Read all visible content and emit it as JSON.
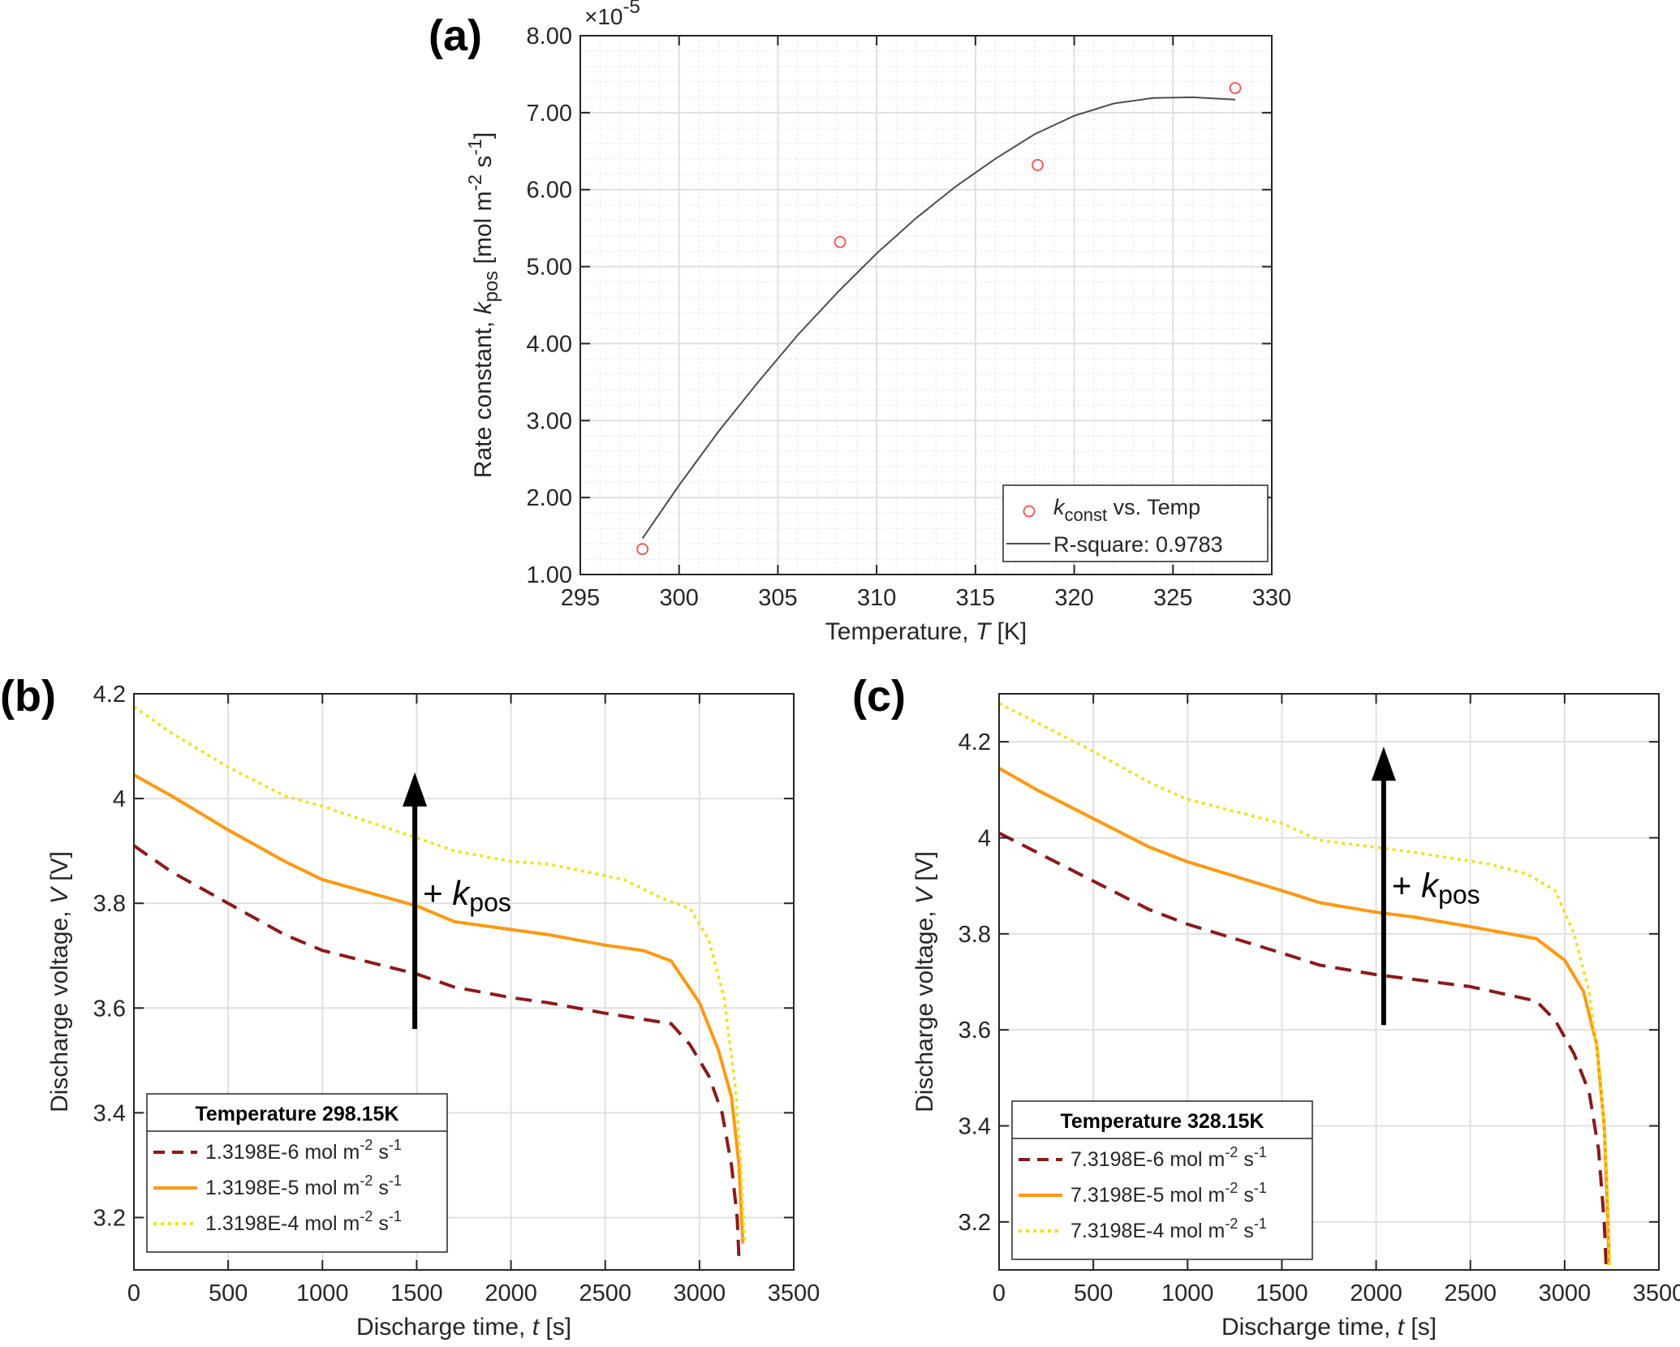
{
  "colors": {
    "axis": "#262626",
    "grid": "#e0e0e0",
    "minor_grid": "#eeeeee",
    "marker": "#ff4d4d",
    "fit": "#4d4d4d",
    "series_low": "#8b1a1a",
    "series_mid": "#ff9912",
    "series_high": "#f0e01e",
    "arrow": "#000000"
  },
  "panels": {
    "a": {
      "label": "(a)"
    },
    "b": {
      "label": "(b)",
      "arrow_label": "+ k",
      "arrow_sub": "pos"
    },
    "c": {
      "label": "(c)",
      "arrow_label": "+ k",
      "arrow_sub": "pos"
    }
  },
  "chart_data": [
    {
      "id": "a",
      "type": "scatter",
      "xlabel": "Temperature, T  [K]",
      "xlabel_parts": {
        "pre": "Temperature, ",
        "var": "T",
        "post": "  [K]"
      },
      "ylabel": "Rate constant, k_pos [mol m^-2 s^-1]",
      "ylabel_parts": {
        "pre": "Rate constant, ",
        "var": "k",
        "sub": "pos",
        "mid": " [mol m",
        "sup1": "-2",
        "mid2": " s",
        "sup2": "-1",
        "post": "]"
      },
      "exponent_label": "×10",
      "exponent_power": "-5",
      "xlim": [
        295,
        330
      ],
      "ylim": [
        1.0,
        8.0
      ],
      "x_ticks": [
        295,
        300,
        305,
        310,
        315,
        320,
        325,
        330
      ],
      "y_ticks": [
        1.0,
        2.0,
        3.0,
        4.0,
        5.0,
        6.0,
        7.0,
        8.0
      ],
      "y_tick_labels": [
        "1.00",
        "2.00",
        "3.00",
        "4.00",
        "5.00",
        "6.00",
        "7.00",
        "8.00"
      ],
      "grid": true,
      "minor_grid": true,
      "legend_position": "bottom-right",
      "series": [
        {
          "name": "k_const vs. Temp",
          "legend_parts": {
            "var": "k",
            "sub": "const",
            "post": " vs. Temp"
          },
          "marker": "circle",
          "color": "#ff4d4d",
          "points": [
            [
              298.15,
              1.33
            ],
            [
              308.15,
              5.32
            ],
            [
              318.15,
              6.32
            ],
            [
              328.15,
              7.32
            ]
          ]
        },
        {
          "name": "R-square: 0.9783",
          "legend_parts": {
            "post": "R-square: 0.9783"
          },
          "line": "solid",
          "color": "#4d4d4d",
          "points": [
            [
              298.15,
              1.47
            ],
            [
              300,
              2.16
            ],
            [
              302,
              2.86
            ],
            [
              304,
              3.5
            ],
            [
              306,
              4.11
            ],
            [
              308,
              4.66
            ],
            [
              310,
              5.17
            ],
            [
              312,
              5.63
            ],
            [
              314,
              6.04
            ],
            [
              316,
              6.4
            ],
            [
              318,
              6.72
            ],
            [
              320,
              6.96
            ],
            [
              322,
              7.12
            ],
            [
              324,
              7.19
            ],
            [
              326,
              7.2
            ],
            [
              328.15,
              7.17
            ]
          ]
        }
      ]
    },
    {
      "id": "b",
      "type": "line",
      "xlabel": "Discharge time, t [s]",
      "xlabel_parts": {
        "pre": "Discharge time, ",
        "var": "t",
        "post": " [s]"
      },
      "ylabel": "Discharge voltage, V [V]",
      "ylabel_parts": {
        "pre": "Discharge voltage, ",
        "var": "V",
        "post": " [V]"
      },
      "xlim": [
        0,
        3500
      ],
      "ylim": [
        3.1,
        4.2
      ],
      "x_ticks": [
        0,
        500,
        1000,
        1500,
        2000,
        2500,
        3000,
        3500
      ],
      "y_ticks": [
        3.2,
        3.4,
        3.6,
        3.8,
        4.0,
        4.2
      ],
      "y_tick_labels": [
        "3.2",
        "3.4",
        "3.6",
        "3.8",
        "4",
        "4.2"
      ],
      "grid": true,
      "legend_position": "bottom-left",
      "legend_title": "Temperature 298.15K",
      "series": [
        {
          "name": "1.3198E-6 mol m^-2 s^-1",
          "legend_parts": {
            "pre": "1.3198E-6 mol m",
            "sup1": "-2",
            "mid": " s",
            "sup2": "-1"
          },
          "style": "dashed",
          "color": "#8b1a1a",
          "points": [
            [
              0,
              3.91
            ],
            [
              200,
              3.86
            ],
            [
              500,
              3.8
            ],
            [
              800,
              3.74
            ],
            [
              1000,
              3.71
            ],
            [
              1500,
              3.665
            ],
            [
              1700,
              3.64
            ],
            [
              2000,
              3.62
            ],
            [
              2200,
              3.61
            ],
            [
              2500,
              3.59
            ],
            [
              2850,
              3.57
            ],
            [
              2950,
              3.53
            ],
            [
              3050,
              3.47
            ],
            [
              3120,
              3.4
            ],
            [
              3170,
              3.3
            ],
            [
              3200,
              3.2
            ],
            [
              3210,
              3.12
            ]
          ]
        },
        {
          "name": "1.3198E-5 mol m^-2 s^-1",
          "legend_parts": {
            "pre": "1.3198E-5 mol m",
            "sup1": "-2",
            "mid": " s",
            "sup2": "-1"
          },
          "style": "solid",
          "color": "#ff9912",
          "points": [
            [
              0,
              4.045
            ],
            [
              200,
              4.005
            ],
            [
              500,
              3.94
            ],
            [
              800,
              3.88
            ],
            [
              1000,
              3.845
            ],
            [
              1500,
              3.795
            ],
            [
              1700,
              3.765
            ],
            [
              2000,
              3.75
            ],
            [
              2200,
              3.74
            ],
            [
              2500,
              3.72
            ],
            [
              2700,
              3.71
            ],
            [
              2850,
              3.69
            ],
            [
              3000,
              3.61
            ],
            [
              3100,
              3.52
            ],
            [
              3170,
              3.43
            ],
            [
              3210,
              3.3
            ],
            [
              3230,
              3.15
            ]
          ]
        },
        {
          "name": "1.3198E-4 mol m^-2 s^-1",
          "legend_parts": {
            "pre": "1.3198E-4 mol m",
            "sup1": "-2",
            "mid": " s",
            "sup2": "-1"
          },
          "style": "dotted",
          "color": "#f0e01e",
          "points": [
            [
              0,
              4.175
            ],
            [
              200,
              4.125
            ],
            [
              500,
              4.06
            ],
            [
              800,
              4.005
            ],
            [
              1000,
              3.985
            ],
            [
              1500,
              3.925
            ],
            [
              1700,
              3.9
            ],
            [
              2000,
              3.88
            ],
            [
              2200,
              3.875
            ],
            [
              2600,
              3.845
            ],
            [
              2800,
              3.81
            ],
            [
              2950,
              3.79
            ],
            [
              3050,
              3.73
            ],
            [
              3130,
              3.62
            ],
            [
              3190,
              3.45
            ],
            [
              3220,
              3.3
            ],
            [
              3240,
              3.15
            ]
          ]
        }
      ]
    },
    {
      "id": "c",
      "type": "line",
      "xlabel": "Discharge time, t [s]",
      "xlabel_parts": {
        "pre": "Discharge time, ",
        "var": "t",
        "post": " [s]"
      },
      "ylabel": "Discharge voltage, V [V]",
      "ylabel_parts": {
        "pre": "Discharge voltage, ",
        "var": "V",
        "post": " [V]"
      },
      "xlim": [
        0,
        3500
      ],
      "ylim": [
        3.1,
        4.3
      ],
      "x_ticks": [
        0,
        500,
        1000,
        1500,
        2000,
        2500,
        3000,
        3500
      ],
      "y_ticks": [
        3.2,
        3.4,
        3.6,
        3.8,
        4.0,
        4.2
      ],
      "y_tick_labels": [
        "3.2",
        "3.4",
        "3.6",
        "3.8",
        "4",
        "4.2"
      ],
      "grid": true,
      "legend_position": "bottom-left",
      "legend_title": "Temperature 328.15K",
      "series": [
        {
          "name": "7.3198E-6 mol m^-2 s^-1",
          "legend_parts": {
            "pre": "7.3198E-6 mol m",
            "sup1": "-2",
            "mid": " s",
            "sup2": "-1"
          },
          "style": "dashed",
          "color": "#8b1a1a",
          "points": [
            [
              0,
              4.01
            ],
            [
              200,
              3.97
            ],
            [
              500,
              3.91
            ],
            [
              800,
              3.85
            ],
            [
              1000,
              3.82
            ],
            [
              1500,
              3.76
            ],
            [
              1700,
              3.735
            ],
            [
              2000,
              3.715
            ],
            [
              2200,
              3.705
            ],
            [
              2500,
              3.69
            ],
            [
              2850,
              3.66
            ],
            [
              2950,
              3.62
            ],
            [
              3050,
              3.55
            ],
            [
              3130,
              3.47
            ],
            [
              3180,
              3.35
            ],
            [
              3210,
              3.2
            ],
            [
              3220,
              3.11
            ]
          ]
        },
        {
          "name": "7.3198E-5 mol m^-2 s^-1",
          "legend_parts": {
            "pre": "7.3198E-5 mol m",
            "sup1": "-2",
            "mid": " s",
            "sup2": "-1"
          },
          "style": "solid",
          "color": "#ff9912",
          "points": [
            [
              0,
              4.145
            ],
            [
              200,
              4.1
            ],
            [
              500,
              4.04
            ],
            [
              800,
              3.98
            ],
            [
              1000,
              3.95
            ],
            [
              1500,
              3.89
            ],
            [
              1700,
              3.865
            ],
            [
              2000,
              3.845
            ],
            [
              2200,
              3.835
            ],
            [
              2500,
              3.815
            ],
            [
              2850,
              3.79
            ],
            [
              3000,
              3.745
            ],
            [
              3100,
              3.68
            ],
            [
              3170,
              3.57
            ],
            [
              3210,
              3.4
            ],
            [
              3230,
              3.2
            ],
            [
              3235,
              3.11
            ]
          ]
        },
        {
          "name": "7.3198E-4 mol m^-2 s^-1",
          "legend_parts": {
            "pre": "7.3198E-4 mol m",
            "sup1": "-2",
            "mid": " s",
            "sup2": "-1"
          },
          "style": "dotted",
          "color": "#f0e01e",
          "points": [
            [
              0,
              4.28
            ],
            [
              200,
              4.24
            ],
            [
              500,
              4.18
            ],
            [
              800,
              4.115
            ],
            [
              1000,
              4.08
            ],
            [
              1500,
              4.03
            ],
            [
              1700,
              3.995
            ],
            [
              2000,
              3.98
            ],
            [
              2200,
              3.97
            ],
            [
              2600,
              3.945
            ],
            [
              2800,
              3.925
            ],
            [
              2950,
              3.89
            ],
            [
              3050,
              3.8
            ],
            [
              3130,
              3.68
            ],
            [
              3190,
              3.5
            ],
            [
              3225,
              3.3
            ],
            [
              3240,
              3.11
            ]
          ]
        }
      ]
    }
  ]
}
